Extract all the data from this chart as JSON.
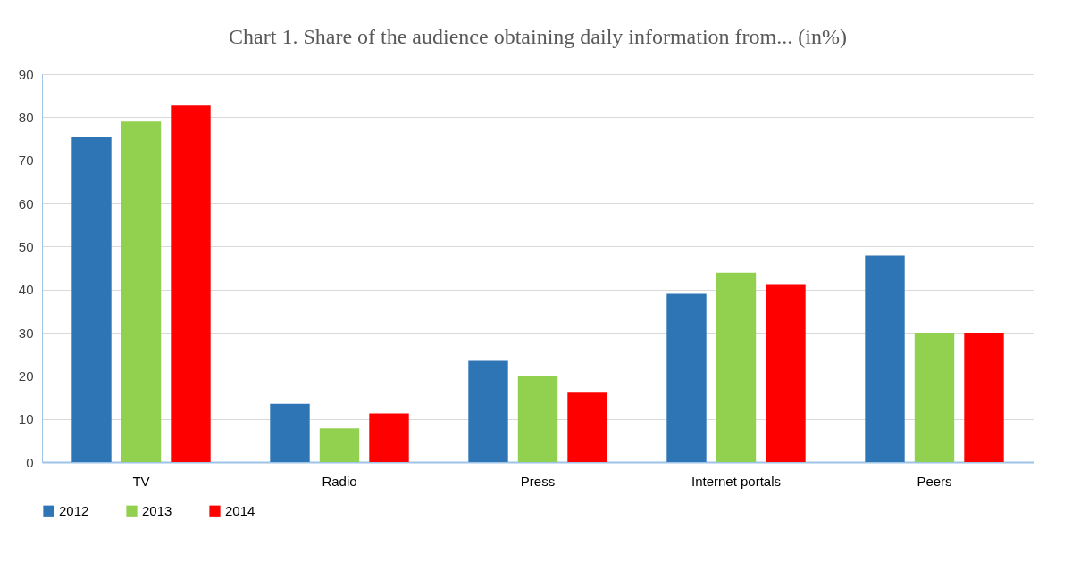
{
  "chart_data": {
    "type": "bar",
    "title": "Chart 1. Share of the audience obtaining daily information from... (in%)",
    "categories": [
      "TV",
      "Radio",
      "Press",
      "Internet portals",
      "Peers"
    ],
    "series": [
      {
        "name": "2012",
        "color": "#2e75b6",
        "values": [
          75.3,
          13.5,
          23.5,
          39.0,
          47.9
        ]
      },
      {
        "name": "2013",
        "color": "#92d050",
        "values": [
          79.0,
          7.8,
          19.9,
          43.9,
          30.0
        ]
      },
      {
        "name": "2014",
        "color": "#ff0000",
        "values": [
          82.7,
          11.3,
          16.3,
          41.3,
          30.0
        ]
      }
    ],
    "ylim": [
      0,
      90
    ],
    "yticks": [
      0,
      10,
      20,
      30,
      40,
      50,
      60,
      70,
      80,
      90
    ],
    "grid": "y",
    "legend": "bottom"
  }
}
